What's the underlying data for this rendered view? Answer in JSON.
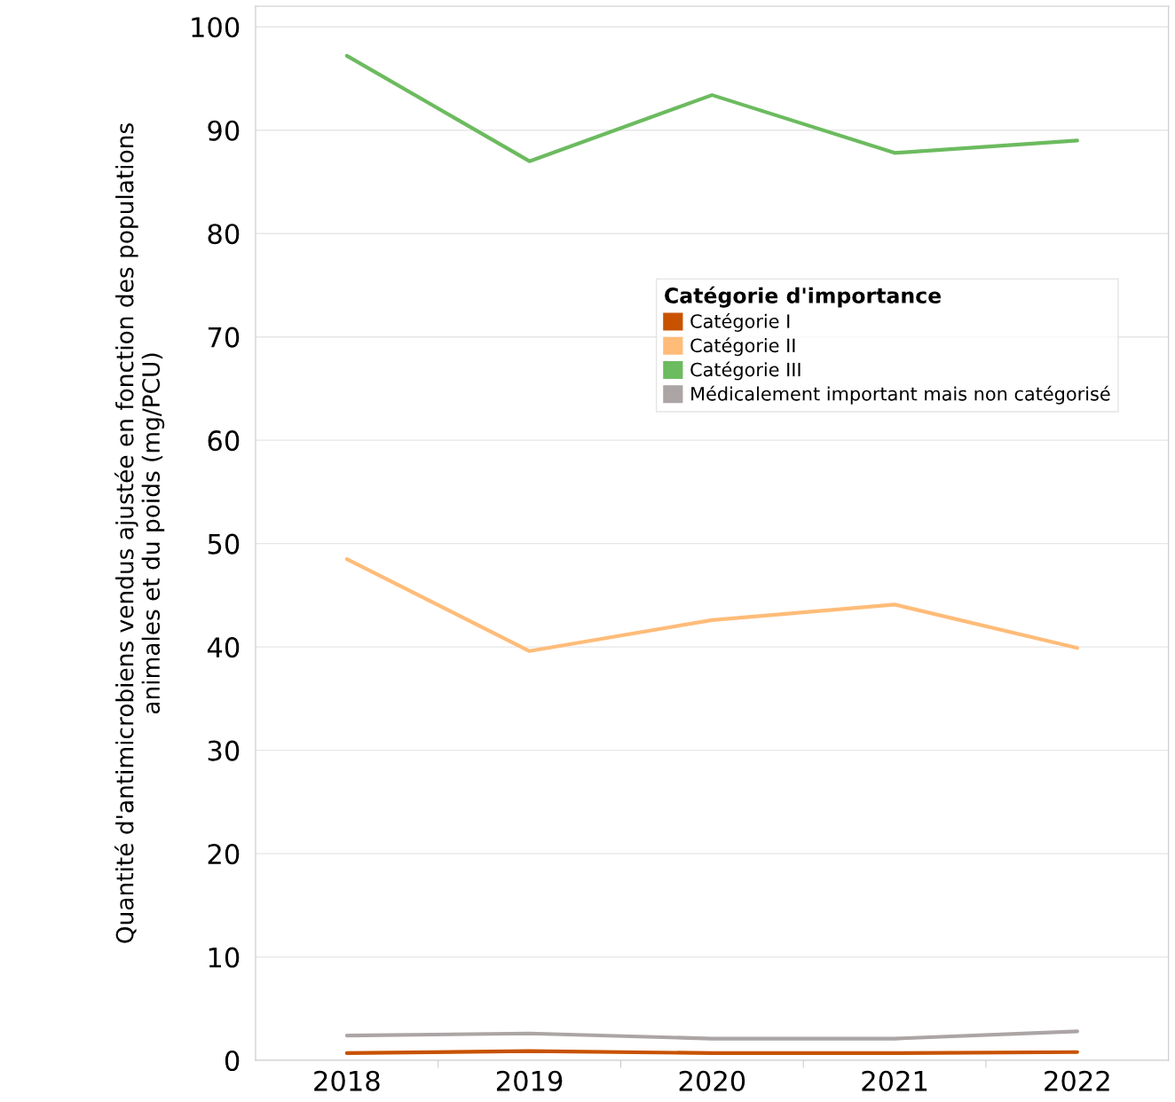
{
  "chart_data": {
    "type": "line",
    "ylabel": "Quantité d'antimicrobiens vendus ajustée en fonction des populations\nanimales et du poids (mg/PCU)",
    "legend_title": "Catégorie d'importance",
    "categories": [
      "2018",
      "2019",
      "2020",
      "2021",
      "2022"
    ],
    "series": [
      {
        "name": "Catégorie I",
        "color": "#c85200",
        "values": [
          0.7,
          0.9,
          0.7,
          0.7,
          0.8
        ]
      },
      {
        "name": "Catégorie II",
        "color": "#ffbc79",
        "values": [
          48.5,
          39.6,
          42.6,
          44.1,
          39.9
        ]
      },
      {
        "name": "Catégorie III",
        "color": "#6cbb5f",
        "values": [
          97.2,
          87.0,
          93.4,
          87.8,
          89.0
        ]
      },
      {
        "name": "Médicalement important mais non catégorisé",
        "color": "#aca5a5",
        "values": [
          2.4,
          2.6,
          2.1,
          2.1,
          2.8
        ]
      }
    ],
    "ylim": [
      0,
      102
    ],
    "yticks": [
      0,
      10,
      20,
      30,
      40,
      50,
      60,
      70,
      80,
      90,
      100
    ],
    "grid": "y",
    "legend": "top right"
  }
}
